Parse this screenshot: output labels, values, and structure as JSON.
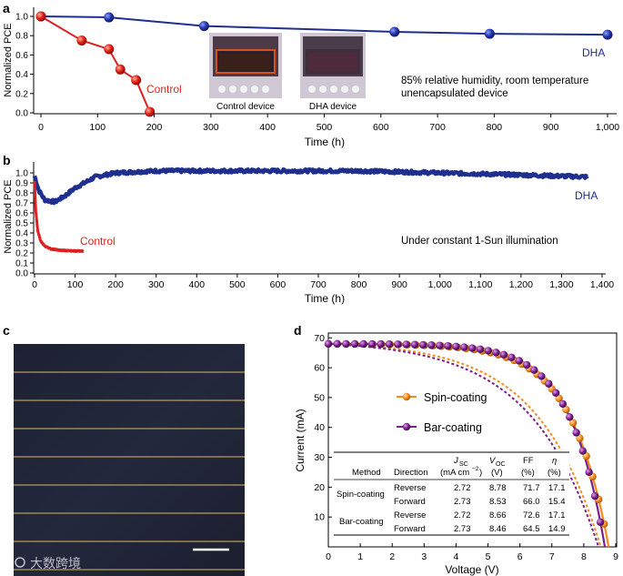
{
  "chart_data": [
    {
      "panel": "a",
      "type": "line",
      "xlabel": "Time (h)",
      "ylabel": "Normalized PCE",
      "xlim": [
        0,
        1030
      ],
      "ylim": [
        0,
        1.05
      ],
      "x_ticks": [
        0,
        100,
        200,
        300,
        400,
        500,
        600,
        700,
        800,
        900,
        1000
      ],
      "x_tick_labels": [
        "0",
        "100",
        "200",
        "300",
        "400",
        "500",
        "600",
        "700",
        "800",
        "900",
        "1,000"
      ],
      "y_ticks": [
        0.0,
        0.2,
        0.4,
        0.6,
        0.8,
        1.0
      ],
      "y_tick_labels": [
        "0.0",
        "0.2",
        "0.4",
        "0.6",
        "0.8",
        "1.0"
      ],
      "series": [
        {
          "name": "DHA",
          "color": "#1f2f8f",
          "x": [
            0,
            120,
            288,
            624,
            792,
            1000
          ],
          "y": [
            1.0,
            0.99,
            0.9,
            0.84,
            0.82,
            0.81
          ]
        },
        {
          "name": "Control",
          "color": "#e02020",
          "x": [
            0,
            72,
            120,
            140,
            168,
            192
          ],
          "y": [
            1.0,
            0.75,
            0.66,
            0.45,
            0.34,
            0.01
          ]
        }
      ],
      "annotations": [
        "85% relative humidity, room temperature",
        "unencapsulated device"
      ],
      "insets": [
        "Control device",
        "DHA device"
      ]
    },
    {
      "panel": "b",
      "type": "line",
      "xlabel": "Time (h)",
      "ylabel": "Normalized PCE",
      "xlim": [
        0,
        1400
      ],
      "ylim": [
        0,
        1.1
      ],
      "x_ticks": [
        0,
        100,
        200,
        300,
        400,
        500,
        600,
        700,
        800,
        900,
        1000,
        1100,
        1200,
        1300,
        1400
      ],
      "x_tick_labels": [
        "0",
        "100",
        "200",
        "300",
        "400",
        "500",
        "600",
        "700",
        "800",
        "900",
        "1,000",
        "1,100",
        "1,200",
        "1,300",
        "1,400"
      ],
      "y_ticks": [
        0.0,
        0.1,
        0.2,
        0.3,
        0.4,
        0.5,
        0.6,
        0.7,
        0.8,
        0.9,
        1.0
      ],
      "y_tick_labels": [
        "0.0",
        "0.1",
        "0.2",
        "0.3",
        "0.4",
        "0.5",
        "0.6",
        "0.7",
        "0.8",
        "0.9",
        "1.0"
      ],
      "series": [
        {
          "name": "DHA",
          "color": "#1f2f8f",
          "x": [
            0,
            10,
            25,
            50,
            75,
            100,
            150,
            200,
            300,
            400,
            600,
            800,
            1000,
            1200,
            1365
          ],
          "y": [
            0.97,
            0.83,
            0.73,
            0.71,
            0.77,
            0.85,
            0.96,
            1.0,
            1.02,
            1.02,
            1.02,
            1.02,
            1.0,
            0.98,
            0.96
          ]
        },
        {
          "name": "Control",
          "color": "#e02020",
          "x": [
            0,
            3,
            8,
            15,
            25,
            40,
            60,
            90,
            120
          ],
          "y": [
            0.92,
            0.62,
            0.42,
            0.32,
            0.27,
            0.24,
            0.23,
            0.22,
            0.22
          ]
        }
      ],
      "annotations": [
        "Under constant 1-Sun illumination"
      ]
    },
    {
      "panel": "d",
      "type": "line",
      "xlabel": "Voltage (V)",
      "ylabel": "Current (mA)",
      "xlim": [
        0,
        9
      ],
      "ylim": [
        0,
        71
      ],
      "x_ticks": [
        0,
        1,
        2,
        3,
        4,
        5,
        6,
        7,
        8,
        9
      ],
      "x_tick_labels": [
        "0",
        "1",
        "2",
        "3",
        "4",
        "5",
        "6",
        "7",
        "8",
        "9"
      ],
      "y_ticks": [
        10,
        20,
        30,
        40,
        50,
        60,
        70
      ],
      "y_tick_labels": [
        "10",
        "20",
        "30",
        "40",
        "50",
        "60",
        "70"
      ],
      "series": [
        {
          "name": "Spin-coating",
          "color": "#f28c1c",
          "isc": 68.0,
          "voc": 8.78,
          "k": 0.135
        },
        {
          "name": "Bar-coating",
          "color": "#7a1f8c",
          "isc": 68.0,
          "voc": 8.66,
          "k": 0.125
        },
        {
          "name": "Spin-coating forward",
          "color": "#f28c1c",
          "dashed": true,
          "isc": 68.0,
          "voc": 8.53,
          "k": 0.23
        },
        {
          "name": "Bar-coating forward",
          "color": "#7a1f8c",
          "dashed": true,
          "isc": 68.0,
          "voc": 8.46,
          "k": 0.25
        }
      ],
      "table": {
        "headers": [
          "Method",
          "Direction",
          "JSC (mA cm−2)",
          "VOC (V)",
          "FF (%)",
          "η (%)"
        ],
        "rows": [
          [
            "Spin-coating",
            "Reverse",
            "2.72",
            "8.78",
            "71.7",
            "17.1"
          ],
          [
            "Spin-coating",
            "Forward",
            "2.73",
            "8.53",
            "66.0",
            "15.4"
          ],
          [
            "Bar-coating",
            "Reverse",
            "2.72",
            "8.66",
            "72.6",
            "17.1"
          ],
          [
            "Bar-coating",
            "Forward",
            "2.73",
            "8.46",
            "64.5",
            "14.9"
          ]
        ]
      }
    }
  ],
  "figure": {
    "panel_labels": [
      "a",
      "b",
      "c",
      "d"
    ],
    "a": {
      "xlabel": "Time (h)",
      "ylabel": "Normalized PCE",
      "dha_label": "DHA",
      "control_label": "Control",
      "annotation_line1": "85% relative humidity, room temperature",
      "annotation_line2": "unencapsulated device",
      "inset_left": "Control device",
      "inset_right": "DHA device"
    },
    "b": {
      "xlabel": "Time (h)",
      "ylabel": "Normalized PCE",
      "dha_label": "DHA",
      "control_label": "Control",
      "annotation": "Under constant 1-Sun illumination"
    },
    "d": {
      "xlabel": "Voltage (V)",
      "ylabel": "Current (mA)",
      "legend_spin": "Spin-coating",
      "legend_bar": "Bar-coating",
      "table_headers": {
        "method": "Method",
        "direction": "Direction",
        "jsc_main": "J",
        "jsc_sub": "SC",
        "jsc_unit_prefix": "(mA cm",
        "jsc_unit_sup": "−2",
        "jsc_unit_suffix": ")",
        "voc_main": "V",
        "voc_sub": "OC",
        "voc_unit": "(V)",
        "ff": "FF",
        "ff_unit": "(%)",
        "eta": "η",
        "eta_unit": "(%)"
      },
      "table_methods": [
        "Spin-coating",
        "Bar-coating"
      ],
      "table_rows": [
        [
          "Reverse",
          "2.72",
          "8.78",
          "71.7",
          "17.1"
        ],
        [
          "Forward",
          "2.73",
          "8.53",
          "66.0",
          "15.4"
        ],
        [
          "Reverse",
          "2.72",
          "8.66",
          "72.6",
          "17.1"
        ],
        [
          "Forward",
          "2.73",
          "8.46",
          "64.5",
          "14.9"
        ]
      ]
    },
    "watermark": "大数跨境",
    "colors": {
      "dha": "#1f2f8f",
      "control": "#e02020",
      "spin": "#f28c1c",
      "bar": "#7a1f8c"
    }
  }
}
